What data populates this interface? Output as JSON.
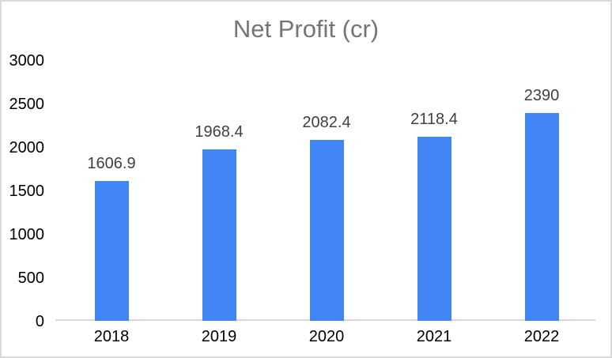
{
  "chart_data": {
    "type": "bar",
    "title": "Net Profit (cr)",
    "categories": [
      "2018",
      "2019",
      "2020",
      "2021",
      "2022"
    ],
    "values": [
      1606.9,
      1968.4,
      2082.4,
      2118.4,
      2390
    ],
    "data_labels": [
      "1606.9",
      "1968.4",
      "2082.4",
      "2118.4",
      "2390"
    ],
    "y_ticks": [
      0,
      500,
      1000,
      1500,
      2000,
      2500,
      3000
    ],
    "ylim": [
      0,
      3000
    ],
    "xlabel": "",
    "ylabel": "",
    "grid": false,
    "legend": "none",
    "bar_color": "#4285f4",
    "title_color": "#757575",
    "axis_line_color": "#d9d9d9",
    "data_label_color": "#404040",
    "tick_label_color": "#000000",
    "frame_border_color": "#d9d9d9",
    "background_color": "#ffffff"
  }
}
